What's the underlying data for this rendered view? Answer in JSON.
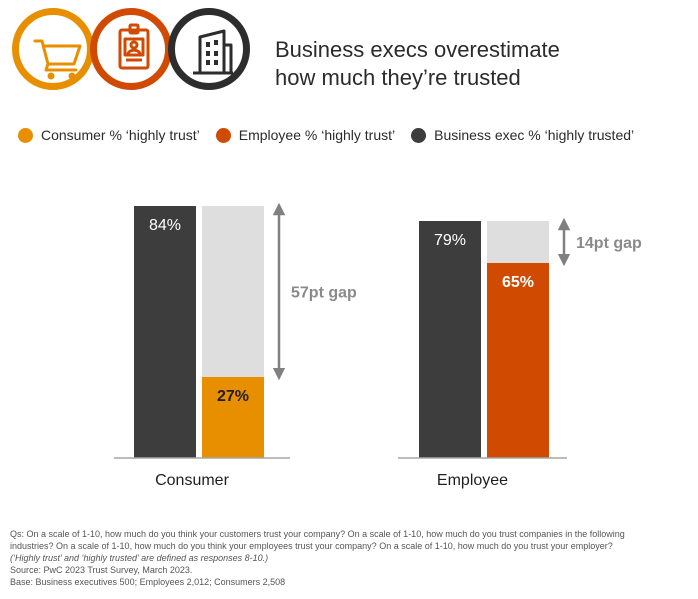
{
  "header": {
    "title_line1": "Business execs overestimate",
    "title_line2": "how much they’re trusted",
    "icons": [
      {
        "name": "shopping-cart-icon",
        "color": "#E88F00"
      },
      {
        "name": "id-badge-icon",
        "color": "#D04A02"
      },
      {
        "name": "office-building-icon",
        "color": "#2D2D2D"
      }
    ]
  },
  "legend": [
    {
      "label": "Consumer % ‘highly trust’",
      "color": "#E88F00"
    },
    {
      "label": "Employee % ‘highly trust’",
      "color": "#D04A02"
    },
    {
      "label": "Business exec % ‘highly trusted’",
      "color": "#3D3D3D"
    }
  ],
  "chart_data": {
    "type": "bar",
    "title": "Business execs overestimate how much they’re trusted",
    "categories": [
      "Consumer",
      "Employee"
    ],
    "series": [
      {
        "name": "Business exec % ‘highly trusted’",
        "color": "#3D3D3D",
        "values": [
          84,
          79
        ]
      },
      {
        "name": "Consumer % ‘highly trust’",
        "color": "#E88F00",
        "values": [
          27,
          null
        ]
      },
      {
        "name": "Employee % ‘highly trust’",
        "color": "#D04A02",
        "values": [
          null,
          65
        ]
      }
    ],
    "value_labels": {
      "exec": [
        "84%",
        "79%"
      ],
      "audience": [
        "27%",
        "65%"
      ]
    },
    "gaps": [
      "57pt gap",
      "14pt gap"
    ],
    "gap_fill_color": "#DEDEDE",
    "ylim": [
      0,
      100
    ],
    "xlabel": "",
    "ylabel": "",
    "grid": false
  },
  "notes": {
    "line1": "Qs: On a scale of 1-10, how much do you think your customers trust your company? On a scale of 1-10, how much do you trust companies in the following",
    "line2": "industries? On a scale of 1-10, how much do you think your employees trust your company? On a scale of 1-10, how much do you trust your employer?",
    "line3": "(‘Highly trust’ and ‘highly trusted’ are defined as responses 8-10.)",
    "source": "Source: PwC 2023 Trust Survey, March 2023.",
    "base": "Base: Business executives 500; Employees 2,012; Consumers 2,508"
  }
}
